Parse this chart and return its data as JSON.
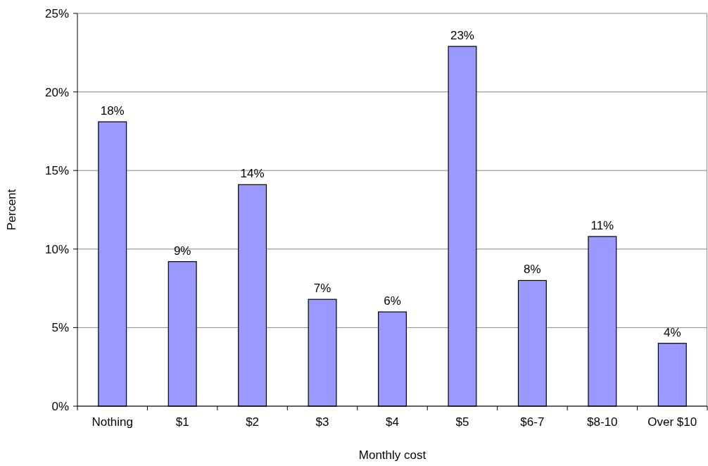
{
  "chart_data": {
    "type": "bar",
    "xlabel": "Monthly cost",
    "ylabel": "Percent",
    "categories": [
      "Nothing",
      "$1",
      "$2",
      "$3",
      "$4",
      "$5",
      "$6-7",
      "$8-10",
      "Over $10"
    ],
    "values": [
      18.1,
      9.2,
      14.1,
      6.8,
      6.0,
      22.9,
      8.0,
      10.8,
      4.0
    ],
    "value_labels": [
      "18%",
      "9%",
      "14%",
      "7%",
      "6%",
      "23%",
      "8%",
      "11%",
      "4%"
    ],
    "color": "#9999ff",
    "ylim": [
      0,
      25
    ],
    "yticks": [
      {
        "value": 0,
        "label": "0%"
      },
      {
        "value": 5,
        "label": "5%"
      },
      {
        "value": 10,
        "label": "10%"
      },
      {
        "value": 15,
        "label": "15%"
      },
      {
        "value": 20,
        "label": "20%"
      },
      {
        "value": 25,
        "label": "25%"
      }
    ],
    "grid": "y"
  }
}
